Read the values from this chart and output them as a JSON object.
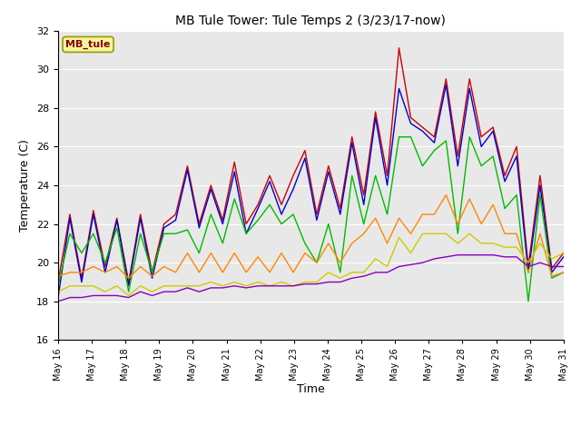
{
  "title": "MB Tule Tower: Tule Temps 2 (3/23/17-now)",
  "xlabel": "Time",
  "ylabel": "Temperature (C)",
  "ylim": [
    16,
    32
  ],
  "yticks": [
    16,
    18,
    20,
    22,
    24,
    26,
    28,
    30,
    32
  ],
  "background_color": "#e8e8e8",
  "station_label": "MB_tule",
  "station_label_color": "#8b0000",
  "station_box_color": "#f5f5a0",
  "series_colors": {
    "Tul2_Tw+2": "#cc0000",
    "Tul2_Ts-2": "#0000cc",
    "Tul2_Ts-4": "#00bb00",
    "Tul2_Ts-8": "#ff8800",
    "Tul2_Ts-16": "#cccc00",
    "Tul2_Ts-32": "#8800bb"
  },
  "x_tick_labels": [
    "May 16",
    "May 17",
    "May 18",
    "May 19",
    "May 20",
    "May 21",
    "May 22",
    "May 23",
    "May 24",
    "May 25",
    "May 26",
    "May 27",
    "May 28",
    "May 29",
    "May 30",
    "May 31"
  ],
  "series_data": {
    "Tul2_Tw+2": [
      19.0,
      22.5,
      19.2,
      22.7,
      19.8,
      22.3,
      19.0,
      22.5,
      19.5,
      22.0,
      22.5,
      25.0,
      22.0,
      24.0,
      22.2,
      25.2,
      22.0,
      23.0,
      24.5,
      23.0,
      24.5,
      25.8,
      22.5,
      25.0,
      22.8,
      26.5,
      23.5,
      27.8,
      24.5,
      31.1,
      27.5,
      27.0,
      26.5,
      29.5,
      25.5,
      29.5,
      26.5,
      27.0,
      24.5,
      26.0,
      19.8,
      24.5,
      19.7,
      20.5
    ],
    "Tul2_Ts-2": [
      18.2,
      22.3,
      19.0,
      22.5,
      19.5,
      22.2,
      18.8,
      22.3,
      19.2,
      21.8,
      22.2,
      24.8,
      21.8,
      23.8,
      22.0,
      24.7,
      21.5,
      22.8,
      24.2,
      22.5,
      23.8,
      25.4,
      22.2,
      24.7,
      22.5,
      26.2,
      23.0,
      27.5,
      24.0,
      29.0,
      27.2,
      26.8,
      26.2,
      29.2,
      25.0,
      29.0,
      26.0,
      26.8,
      24.2,
      25.5,
      19.5,
      24.0,
      19.5,
      20.3
    ],
    "Tul2_Ts-4": [
      18.8,
      21.5,
      20.5,
      21.5,
      20.0,
      21.8,
      18.5,
      21.5,
      19.5,
      21.5,
      21.5,
      21.7,
      20.5,
      22.5,
      21.0,
      23.3,
      21.5,
      22.2,
      23.0,
      22.0,
      22.5,
      21.0,
      20.0,
      22.0,
      19.5,
      24.5,
      22.0,
      24.5,
      22.5,
      26.5,
      26.5,
      25.0,
      25.8,
      26.3,
      21.5,
      26.5,
      25.0,
      25.5,
      22.8,
      23.5,
      18.0,
      23.5,
      19.2,
      19.5
    ],
    "Tul2_Ts-8": [
      19.3,
      19.5,
      19.5,
      19.8,
      19.5,
      19.8,
      19.2,
      19.8,
      19.3,
      19.8,
      19.5,
      20.5,
      19.5,
      20.5,
      19.5,
      20.5,
      19.5,
      20.3,
      19.5,
      20.5,
      19.5,
      20.5,
      20.0,
      21.0,
      20.0,
      21.0,
      21.5,
      22.3,
      21.0,
      22.3,
      21.5,
      22.5,
      22.5,
      23.5,
      22.0,
      23.3,
      22.0,
      23.0,
      21.5,
      21.5,
      19.5,
      21.5,
      19.3,
      19.5
    ],
    "Tul2_Ts-16": [
      18.5,
      18.8,
      18.8,
      18.8,
      18.5,
      18.8,
      18.3,
      18.8,
      18.5,
      18.8,
      18.8,
      18.8,
      18.8,
      19.0,
      18.8,
      19.0,
      18.8,
      19.0,
      18.8,
      19.0,
      18.8,
      19.0,
      19.0,
      19.5,
      19.2,
      19.5,
      19.5,
      20.2,
      19.8,
      21.3,
      20.5,
      21.5,
      21.5,
      21.5,
      21.0,
      21.5,
      21.0,
      21.0,
      20.8,
      20.8,
      20.0,
      21.0,
      20.2,
      20.5
    ],
    "Tul2_Ts-32": [
      18.0,
      18.2,
      18.2,
      18.3,
      18.3,
      18.3,
      18.2,
      18.5,
      18.3,
      18.5,
      18.5,
      18.7,
      18.5,
      18.7,
      18.7,
      18.8,
      18.7,
      18.8,
      18.8,
      18.8,
      18.8,
      18.9,
      18.9,
      19.0,
      19.0,
      19.2,
      19.3,
      19.5,
      19.5,
      19.8,
      19.9,
      20.0,
      20.2,
      20.3,
      20.4,
      20.4,
      20.4,
      20.4,
      20.3,
      20.3,
      19.8,
      20.0,
      19.8,
      19.8
    ]
  }
}
